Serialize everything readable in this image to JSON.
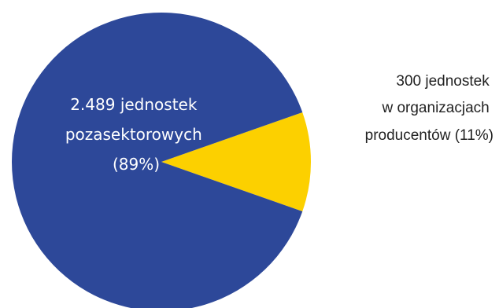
{
  "chart_data": {
    "type": "pie",
    "slices": [
      {
        "value": 2489,
        "percent": 89,
        "color": "#2d4899",
        "label_lines": [
          "2.489 jednostek",
          "pozasektorowych",
          "(89%)"
        ]
      },
      {
        "value": 300,
        "percent": 11,
        "color": "#fcd000",
        "label_lines": [
          "300 jednostek",
          "w organizacjach",
          "producentów (11%)"
        ]
      }
    ]
  }
}
